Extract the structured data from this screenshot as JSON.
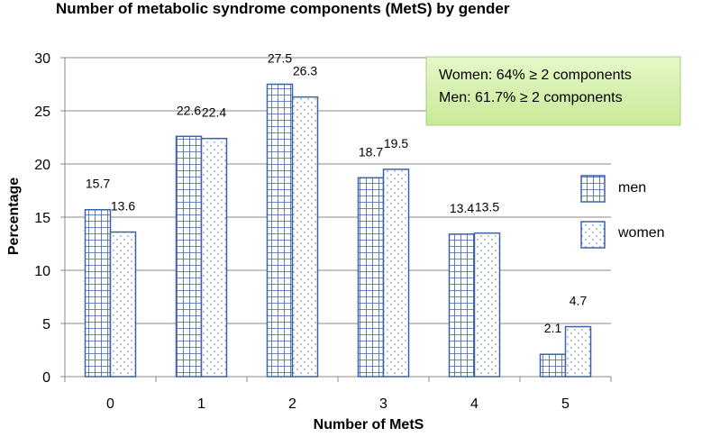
{
  "chart_data": {
    "type": "bar",
    "title": "Number of metabolic syndrome components (MetS)  by gender",
    "xlabel": "Number of MetS",
    "ylabel": "Percentage",
    "categories": [
      "0",
      "1",
      "2",
      "3",
      "4",
      "5"
    ],
    "series": [
      {
        "name": "men",
        "values": [
          15.7,
          22.6,
          27.5,
          18.7,
          13.4,
          2.1
        ],
        "pattern": "grid",
        "color": "#3b63a6"
      },
      {
        "name": "women",
        "values": [
          13.6,
          22.4,
          26.3,
          19.5,
          13.5,
          4.7
        ],
        "pattern": "dots",
        "color": "#3b63a6"
      }
    ],
    "ylim": [
      0,
      30
    ],
    "yticks": [
      0,
      5,
      10,
      15,
      20,
      25,
      30
    ],
    "grid": true,
    "legend": "right",
    "annotation": {
      "lines": [
        "Women: 64% ≥ 2 components",
        "Men: 61.7% ≥ 2 components"
      ],
      "fill": "#d8f0b0",
      "border": "#a8d080"
    }
  }
}
